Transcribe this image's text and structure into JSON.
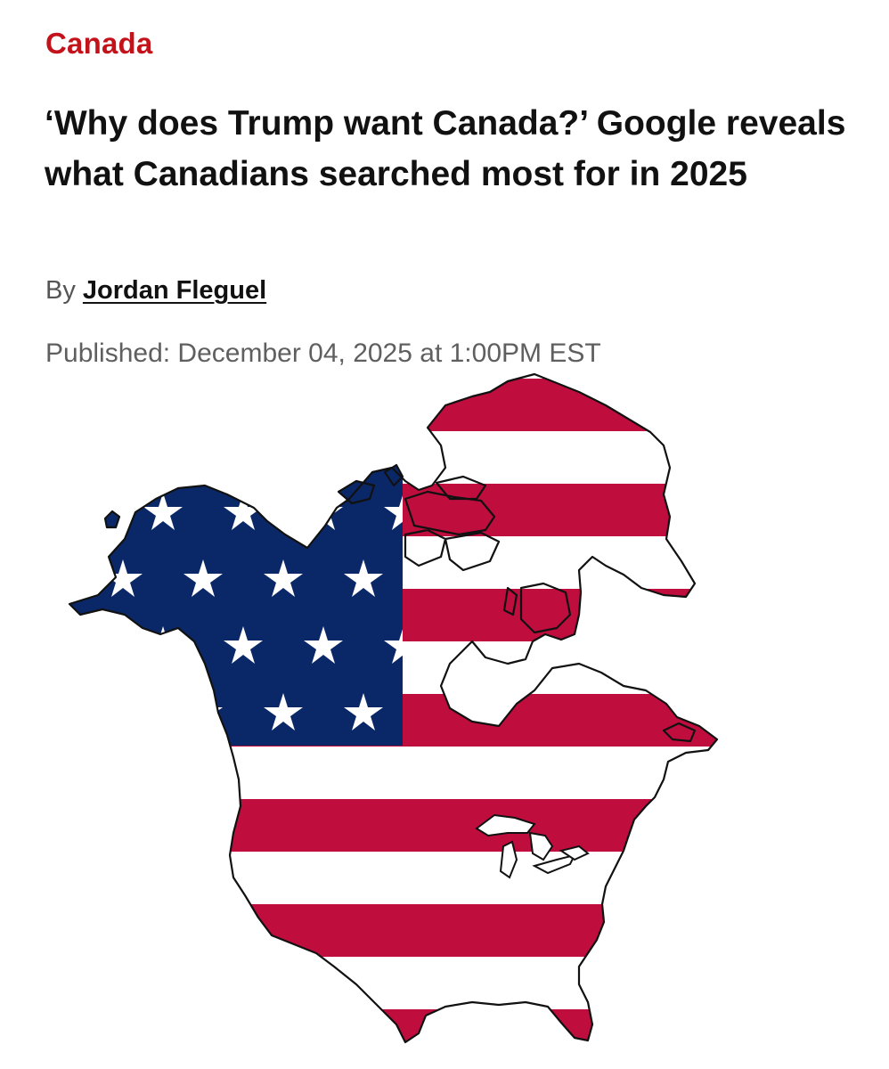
{
  "article": {
    "section": "Canada",
    "headline": "‘Why does Trump want Canada?’ Google reveals what Canadians searched most for in 2025",
    "byline_prefix": "By",
    "author": "Jordan Fleguel",
    "published": "Published: December 04, 2025 at 1:00PM EST"
  },
  "figure": {
    "icon": "north-america-us-flag-map",
    "colors": {
      "red": "#bf0d3e",
      "white": "#ffffff",
      "blue": "#0a2868",
      "outline": "#111111"
    }
  }
}
